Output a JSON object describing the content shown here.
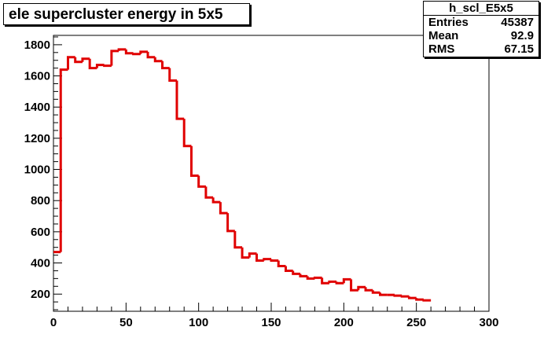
{
  "title": "ele supercluster energy in 5x5",
  "stats": {
    "name": "h_scl_E5x5",
    "rows": [
      {
        "label": "Entries",
        "value": "45387"
      },
      {
        "label": "Mean",
        "value": "92.9"
      },
      {
        "label": "RMS",
        "value": "67.15"
      }
    ]
  },
  "colors": {
    "line": "#e00000",
    "axis": "#000000",
    "background": "#ffffff"
  },
  "chart_data": {
    "type": "line",
    "title": "ele supercluster energy in 5x5",
    "xlabel": "",
    "ylabel": "",
    "xlim": [
      0,
      300
    ],
    "ylim": [
      90,
      1860
    ],
    "x_ticks": [
      0,
      50,
      100,
      150,
      200,
      250,
      300
    ],
    "y_ticks": [
      200,
      400,
      600,
      800,
      1000,
      1200,
      1400,
      1600,
      1800
    ],
    "grid": false,
    "bin_width": 5,
    "series": [
      {
        "name": "",
        "values": [
          470,
          1640,
          1720,
          1690,
          1710,
          1650,
          1670,
          1665,
          1760,
          1770,
          1745,
          1740,
          1755,
          1720,
          1695,
          1650,
          1570,
          1325,
          1150,
          960,
          890,
          820,
          790,
          720,
          605,
          500,
          435,
          460,
          415,
          425,
          415,
          380,
          350,
          330,
          315,
          300,
          305,
          270,
          280,
          270,
          295,
          225,
          245,
          225,
          210,
          195,
          195,
          190,
          185,
          175,
          165,
          160
        ]
      }
    ]
  }
}
